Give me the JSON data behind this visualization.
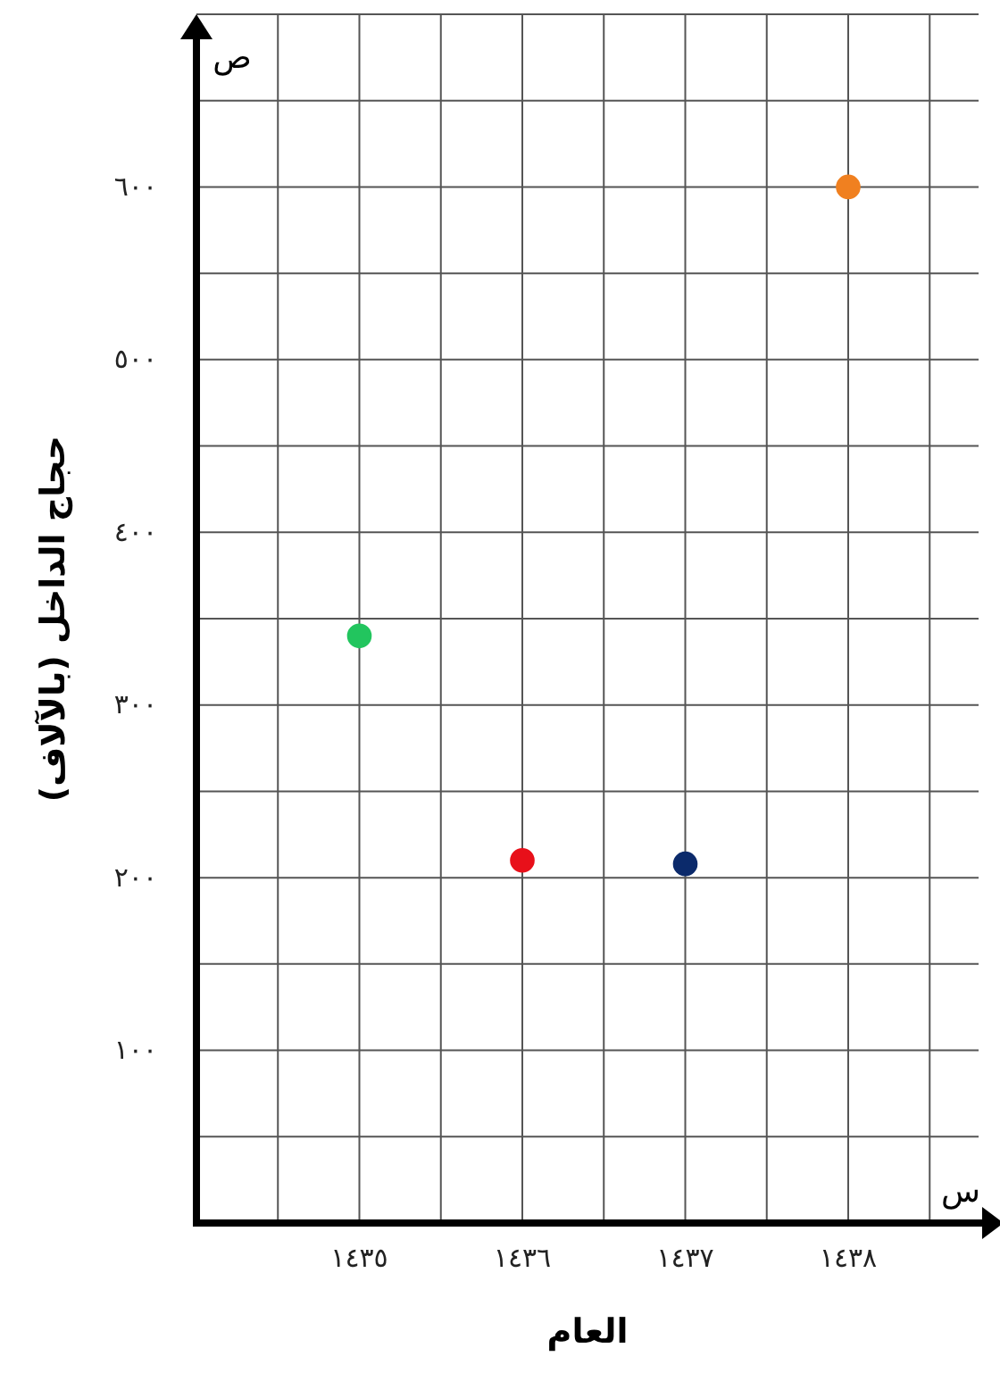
{
  "chart_data": {
    "type": "scatter",
    "xlabel": "العام",
    "ylabel": "حجاج الداخل (بالآلاف)",
    "x": [
      1435,
      1436,
      1437,
      1438
    ],
    "values": [
      340,
      210,
      208,
      600
    ],
    "colors": [
      "#22c55e",
      "#e8101a",
      "#0b2a6b",
      "#f08020"
    ],
    "xlim": [
      1434,
      1438.8
    ],
    "ylim": [
      0,
      700
    ],
    "xticks": [
      {
        "value": 1435,
        "label": "١٤٣٥"
      },
      {
        "value": 1436,
        "label": "١٤٣٦"
      },
      {
        "value": 1437,
        "label": "١٤٣٧"
      },
      {
        "value": 1438,
        "label": "١٤٣٨"
      }
    ],
    "yticks": [
      {
        "value": 100,
        "label": "١٠٠"
      },
      {
        "value": 200,
        "label": "٢٠٠"
      },
      {
        "value": 300,
        "label": "٣٠٠"
      },
      {
        "value": 400,
        "label": "٤٠٠"
      },
      {
        "value": 500,
        "label": "٥٠٠"
      },
      {
        "value": 600,
        "label": "٦٠٠"
      }
    ],
    "grid": true,
    "marker": "circle",
    "annotations": [
      "ص",
      "س"
    ]
  }
}
